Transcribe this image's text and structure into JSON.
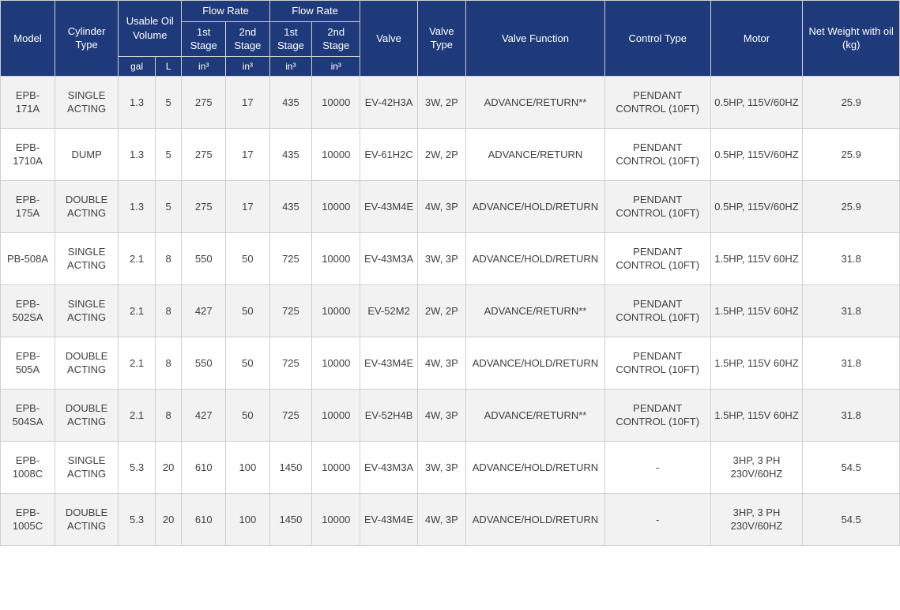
{
  "table": {
    "colors": {
      "header_bg": "#1f3a7a",
      "header_text": "#ffffff",
      "row_even_bg": "#f2f2f2",
      "row_odd_bg": "#ffffff",
      "border_color": "#cfcfcf",
      "cell_text": "#404040"
    },
    "typography": {
      "font_family": "Segoe UI, Arial, sans-serif",
      "header_fontsize_pt": 10,
      "cell_fontsize_pt": 10
    },
    "header": {
      "row1": {
        "model": "Model",
        "cylinder_type": "Cylinder Type",
        "usable_oil": "Usable Oil Volume",
        "flow_rate_a": "Flow Rate",
        "flow_rate_b": "Flow Rate",
        "valve": "Valve",
        "valve_type": "Valve Type",
        "valve_function": "Valve Function",
        "control_type": "Control Type",
        "motor": "Motor",
        "net_weight": "Net Weight with oil (kg)"
      },
      "row2": {
        "stage1a": "1st Stage",
        "stage2a": "2nd Stage",
        "stage1b": "1st Stage",
        "stage2b": "2nd Stage"
      },
      "row3": {
        "gal": "gal",
        "l": "L",
        "in3_1": "in³",
        "in3_2": "in³",
        "in3_3": "in³",
        "in3_4": "in³"
      }
    },
    "rows": [
      {
        "model": "EPB-171A",
        "cylinder": "SINGLE ACTING",
        "gal": "1.3",
        "l": "5",
        "fr1": "275",
        "fr2": "17",
        "fr3": "435",
        "fr4": "10000",
        "valve": "EV-42H3A",
        "vtype": "3W, 2P",
        "vfunc": "ADVANCE/RETURN**",
        "ctrl": "PENDANT CONTROL (10FT)",
        "motor": "0.5HP, 115V/60HZ",
        "weight": "25.9"
      },
      {
        "model": "EPB-1710A",
        "cylinder": "DUMP",
        "gal": "1.3",
        "l": "5",
        "fr1": "275",
        "fr2": "17",
        "fr3": "435",
        "fr4": "10000",
        "valve": "EV-61H2C",
        "vtype": "2W, 2P",
        "vfunc": "ADVANCE/RETURN",
        "ctrl": "PENDANT CONTROL (10FT)",
        "motor": "0.5HP, 115V/60HZ",
        "weight": "25.9"
      },
      {
        "model": "EPB-175A",
        "cylinder": "DOUBLE ACTING",
        "gal": "1.3",
        "l": "5",
        "fr1": "275",
        "fr2": "17",
        "fr3": "435",
        "fr4": "10000",
        "valve": "EV-43M4E",
        "vtype": "4W, 3P",
        "vfunc": "ADVANCE/HOLD/RETURN",
        "ctrl": "PENDANT CONTROL (10FT)",
        "motor": "0.5HP, 115V/60HZ",
        "weight": "25.9"
      },
      {
        "model": "PB-508A",
        "cylinder": "SINGLE ACTING",
        "gal": "2.1",
        "l": "8",
        "fr1": "550",
        "fr2": "50",
        "fr3": "725",
        "fr4": "10000",
        "valve": "EV-43M3A",
        "vtype": "3W, 3P",
        "vfunc": "ADVANCE/HOLD/RETURN",
        "ctrl": "PENDANT CONTROL (10FT)",
        "motor": "1.5HP, 115V 60HZ",
        "weight": "31.8"
      },
      {
        "model": "EPB-502SA",
        "cylinder": "SINGLE ACTING",
        "gal": "2.1",
        "l": "8",
        "fr1": "427",
        "fr2": "50",
        "fr3": "725",
        "fr4": "10000",
        "valve": "EV-52M2",
        "vtype": "2W, 2P",
        "vfunc": "ADVANCE/RETURN**",
        "ctrl": "PENDANT CONTROL (10FT)",
        "motor": "1.5HP, 115V 60HZ",
        "weight": "31.8"
      },
      {
        "model": "EPB-505A",
        "cylinder": "DOUBLE ACTING",
        "gal": "2.1",
        "l": "8",
        "fr1": "550",
        "fr2": "50",
        "fr3": "725",
        "fr4": "10000",
        "valve": "EV-43M4E",
        "vtype": "4W, 3P",
        "vfunc": "ADVANCE/HOLD/RETURN",
        "ctrl": "PENDANT CONTROL (10FT)",
        "motor": "1.5HP, 115V 60HZ",
        "weight": "31.8"
      },
      {
        "model": "EPB-504SA",
        "cylinder": "DOUBLE ACTING",
        "gal": "2.1",
        "l": "8",
        "fr1": "427",
        "fr2": "50",
        "fr3": "725",
        "fr4": "10000",
        "valve": "EV-52H4B",
        "vtype": "4W, 3P",
        "vfunc": "ADVANCE/RETURN**",
        "ctrl": "PENDANT CONTROL (10FT)",
        "motor": "1.5HP, 115V 60HZ",
        "weight": "31.8"
      },
      {
        "model": "EPB-1008C",
        "cylinder": "SINGLE ACTING",
        "gal": "5.3",
        "l": "20",
        "fr1": "610",
        "fr2": "100",
        "fr3": "1450",
        "fr4": "10000",
        "valve": "EV-43M3A",
        "vtype": "3W, 3P",
        "vfunc": "ADVANCE/HOLD/RETURN",
        "ctrl": "-",
        "motor": "3HP, 3 PH 230V/60HZ",
        "weight": "54.5"
      },
      {
        "model": "EPB-1005C",
        "cylinder": "DOUBLE ACTING",
        "gal": "5.3",
        "l": "20",
        "fr1": "610",
        "fr2": "100",
        "fr3": "1450",
        "fr4": "10000",
        "valve": "EV-43M4E",
        "vtype": "4W, 3P",
        "vfunc": "ADVANCE/HOLD/RETURN",
        "ctrl": "-",
        "motor": "3HP, 3 PH 230V/60HZ",
        "weight": "54.5"
      }
    ]
  }
}
